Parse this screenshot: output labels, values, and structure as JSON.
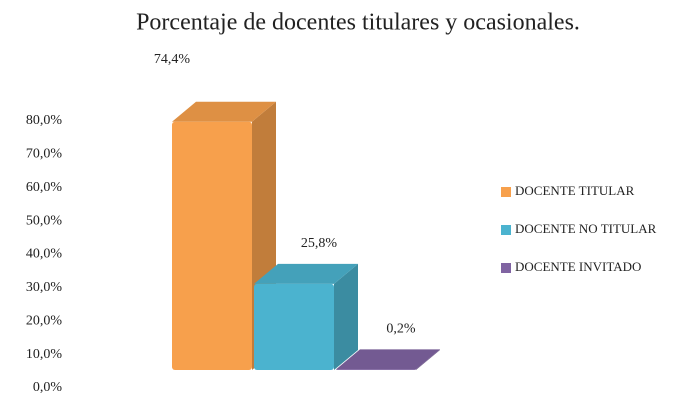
{
  "chart_data": {
    "type": "bar",
    "title": "Porcentaje de docentes titulares y ocasionales.",
    "categories": [
      null
    ],
    "series": [
      {
        "name": "DOCENTE TITULAR",
        "color": "#f7a04c",
        "values": [
          74.4
        ],
        "value_labels": [
          "74,4%"
        ]
      },
      {
        "name": "DOCENTE NO TITULAR",
        "color": "#4bb3cf",
        "values": [
          25.8
        ],
        "value_labels": [
          "25,8%"
        ]
      },
      {
        "name": "DOCENTE INVITADO",
        "color": "#8064a2",
        "values": [
          0.2
        ],
        "value_labels": [
          "0,2%"
        ]
      }
    ],
    "ylim": [
      0,
      80
    ],
    "yticks": [
      {
        "value": 0,
        "label": "0,0%"
      },
      {
        "value": 10,
        "label": "10,0%"
      },
      {
        "value": 20,
        "label": "20,0%"
      },
      {
        "value": 30,
        "label": "30,0%"
      },
      {
        "value": 40,
        "label": "40,0%"
      },
      {
        "value": 50,
        "label": "50,0%"
      },
      {
        "value": 60,
        "label": "60,0%"
      },
      {
        "value": 70,
        "label": "70,0%"
      },
      {
        "value": 80,
        "label": "80,0%"
      }
    ],
    "grid": false,
    "legend": "right"
  }
}
